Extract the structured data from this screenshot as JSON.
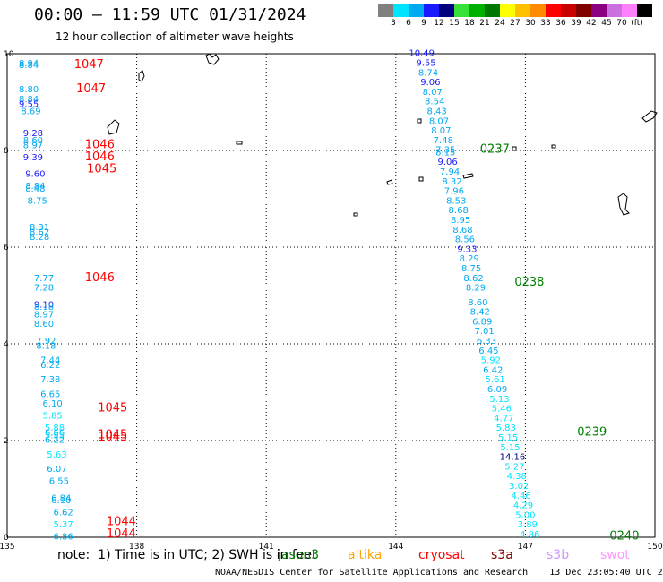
{
  "header": {
    "title": "00:00 – 11:59 UTC 01/31/2024",
    "subtitle": "12 hour collection of altimeter wave heights"
  },
  "colorbar": {
    "labels": [
      "3",
      "6",
      "9",
      "12",
      "15",
      "18",
      "21",
      "24",
      "27",
      "30",
      "33",
      "36",
      "39",
      "42",
      "45",
      "70",
      "(ft)"
    ],
    "colors": [
      "#808080",
      "#00e5ff",
      "#00aaf0",
      "#1a1aff",
      "#00007f",
      "#38e038",
      "#00b000",
      "#007800",
      "#ffff00",
      "#ffc000",
      "#ff8c00",
      "#ff0000",
      "#c80000",
      "#800000",
      "#8b0080",
      "#cc70e0",
      "#ff80ff",
      "#000000"
    ]
  },
  "footer": {
    "note": "note:  1) Time is in UTC; 2) SWH is in feet",
    "credit": "NOAA/NESDIS Center for Satellite Applications and Research    13 Dec 23:05:40 UTC 2024"
  },
  "legend": [
    {
      "label": "jason3",
      "color": "#007f00"
    },
    {
      "label": "altika",
      "color": "#ffa500"
    },
    {
      "label": "cryosat",
      "color": "#ff0000"
    },
    {
      "label": "s3a",
      "color": "#800000"
    },
    {
      "label": "s3b",
      "color": "#cc99ff"
    },
    {
      "label": "swot",
      "color": "#ff99ff"
    }
  ],
  "chart_data": {
    "type": "scatter",
    "title": "12 hour collection of altimeter wave heights",
    "xlim": [
      135,
      150
    ],
    "ylim": [
      0,
      10
    ],
    "x_ticks": [
      135,
      138,
      141,
      144,
      147,
      150
    ],
    "y_ticks": [
      0,
      2,
      4,
      6,
      8,
      10
    ],
    "grid": true,
    "series": [
      {
        "name": "cryosat",
        "color_key": "cryosat",
        "pass_labels": [
          {
            "x": 136.55,
            "y": 9.7,
            "text": "1047"
          },
          {
            "x": 136.6,
            "y": 9.2,
            "text": "1047"
          },
          {
            "x": 136.8,
            "y": 8.05,
            "text": "1046"
          },
          {
            "x": 136.8,
            "y": 7.8,
            "text": "1046"
          },
          {
            "x": 136.85,
            "y": 7.55,
            "text": "1045"
          },
          {
            "x": 136.8,
            "y": 5.3,
            "text": "1046"
          },
          {
            "x": 137.1,
            "y": 2.6,
            "text": "1045"
          },
          {
            "x": 137.1,
            "y": 2.05,
            "text": "1045"
          },
          {
            "x": 137.1,
            "y": 2.0,
            "text": "1045"
          },
          {
            "x": 137.3,
            "y": 0.25,
            "text": "1044"
          },
          {
            "x": 137.3,
            "y": 0.0,
            "text": "1044"
          }
        ],
        "points": [
          {
            "x": 135.5,
            "y": 9.74,
            "v": 8.94
          },
          {
            "x": 135.5,
            "y": 9.7,
            "v": 8.84
          },
          {
            "x": 135.5,
            "y": 9.2,
            "v": 8.8
          },
          {
            "x": 135.5,
            "y": 9.0,
            "v": 8.84
          },
          {
            "x": 135.5,
            "y": 8.9,
            "v": 9.55
          },
          {
            "x": 135.55,
            "y": 8.75,
            "v": 8.69
          },
          {
            "x": 135.6,
            "y": 8.3,
            "v": 9.28
          },
          {
            "x": 135.6,
            "y": 8.15,
            "v": 8.6
          },
          {
            "x": 135.6,
            "y": 8.05,
            "v": 8.97
          },
          {
            "x": 135.6,
            "y": 7.8,
            "v": 9.39
          },
          {
            "x": 135.65,
            "y": 7.45,
            "v": 9.6
          },
          {
            "x": 135.65,
            "y": 7.2,
            "v": 8.84
          },
          {
            "x": 135.65,
            "y": 7.15,
            "v": 8.48
          },
          {
            "x": 135.7,
            "y": 6.9,
            "v": 8.75
          },
          {
            "x": 135.75,
            "y": 6.35,
            "v": 8.31
          },
          {
            "x": 135.75,
            "y": 6.25,
            "v": 8.62
          },
          {
            "x": 135.75,
            "y": 6.15,
            "v": 8.28
          },
          {
            "x": 135.85,
            "y": 5.3,
            "v": 7.77
          },
          {
            "x": 135.85,
            "y": 5.1,
            "v": 7.28
          },
          {
            "x": 135.85,
            "y": 4.75,
            "v": 9.1
          },
          {
            "x": 135.85,
            "y": 4.7,
            "v": 8.18
          },
          {
            "x": 135.85,
            "y": 4.55,
            "v": 8.97
          },
          {
            "x": 135.85,
            "y": 4.35,
            "v": 8.6
          },
          {
            "x": 135.9,
            "y": 4.0,
            "v": 7.92
          },
          {
            "x": 135.9,
            "y": 3.9,
            "v": 8.18
          },
          {
            "x": 136.0,
            "y": 3.6,
            "v": 7.44
          },
          {
            "x": 136.0,
            "y": 3.5,
            "v": 6.22
          },
          {
            "x": 136.0,
            "y": 3.2,
            "v": 7.38
          },
          {
            "x": 136.0,
            "y": 2.9,
            "v": 6.65
          },
          {
            "x": 136.05,
            "y": 2.7,
            "v": 6.1
          },
          {
            "x": 136.05,
            "y": 2.45,
            "v": 5.85
          },
          {
            "x": 136.1,
            "y": 2.2,
            "v": 5.88
          },
          {
            "x": 136.1,
            "y": 2.1,
            "v": 6.66
          },
          {
            "x": 136.1,
            "y": 2.05,
            "v": 5.95
          },
          {
            "x": 136.1,
            "y": 1.95,
            "v": 6.22
          },
          {
            "x": 136.15,
            "y": 1.65,
            "v": 5.63
          },
          {
            "x": 136.15,
            "y": 1.35,
            "v": 6.07
          },
          {
            "x": 136.2,
            "y": 1.1,
            "v": 6.55
          },
          {
            "x": 136.25,
            "y": 0.75,
            "v": 6.84
          },
          {
            "x": 136.25,
            "y": 0.7,
            "v": 6.1
          },
          {
            "x": 136.3,
            "y": 0.45,
            "v": 6.62
          },
          {
            "x": 136.3,
            "y": 0.2,
            "v": 5.37
          },
          {
            "x": 136.3,
            "y": -0.05,
            "v": 6.86
          }
        ]
      },
      {
        "name": "jason3",
        "color_key": "jason3",
        "pass_labels": [
          {
            "x": 145.95,
            "y": 7.95,
            "text": "0237"
          },
          {
            "x": 146.75,
            "y": 5.2,
            "text": "0238"
          },
          {
            "x": 148.2,
            "y": 2.1,
            "text": "0239"
          },
          {
            "x": 148.95,
            "y": -0.05,
            "text": "0240"
          }
        ],
        "points": [
          {
            "x": 144.6,
            "y": 9.95,
            "v": 10.49
          },
          {
            "x": 144.7,
            "y": 9.75,
            "v": 9.55
          },
          {
            "x": 144.75,
            "y": 9.55,
            "v": 8.74
          },
          {
            "x": 144.8,
            "y": 9.35,
            "v": 9.06
          },
          {
            "x": 144.85,
            "y": 9.15,
            "v": 8.07
          },
          {
            "x": 144.9,
            "y": 8.95,
            "v": 8.54
          },
          {
            "x": 144.95,
            "y": 8.75,
            "v": 8.43
          },
          {
            "x": 145.0,
            "y": 8.55,
            "v": 8.07
          },
          {
            "x": 145.05,
            "y": 8.35,
            "v": 8.07
          },
          {
            "x": 145.1,
            "y": 8.15,
            "v": 7.48
          },
          {
            "x": 145.15,
            "y": 7.95,
            "v": 7.35
          },
          {
            "x": 145.15,
            "y": 7.9,
            "v": 8.15
          },
          {
            "x": 145.2,
            "y": 7.7,
            "v": 9.06
          },
          {
            "x": 145.25,
            "y": 7.5,
            "v": 7.94
          },
          {
            "x": 145.3,
            "y": 7.3,
            "v": 8.32
          },
          {
            "x": 145.35,
            "y": 7.1,
            "v": 7.96
          },
          {
            "x": 145.4,
            "y": 6.9,
            "v": 8.53
          },
          {
            "x": 145.45,
            "y": 6.7,
            "v": 8.68
          },
          {
            "x": 145.5,
            "y": 6.5,
            "v": 8.95
          },
          {
            "x": 145.55,
            "y": 6.3,
            "v": 8.68
          },
          {
            "x": 145.6,
            "y": 6.1,
            "v": 8.56
          },
          {
            "x": 145.65,
            "y": 5.9,
            "v": 9.33
          },
          {
            "x": 145.7,
            "y": 5.7,
            "v": 8.29
          },
          {
            "x": 145.75,
            "y": 5.5,
            "v": 8.75
          },
          {
            "x": 145.8,
            "y": 5.3,
            "v": 8.62
          },
          {
            "x": 145.85,
            "y": 5.1,
            "v": 8.29
          },
          {
            "x": 145.9,
            "y": 4.8,
            "v": 8.6
          },
          {
            "x": 145.95,
            "y": 4.6,
            "v": 8.42
          },
          {
            "x": 146.0,
            "y": 4.4,
            "v": 6.89
          },
          {
            "x": 146.05,
            "y": 4.2,
            "v": 7.01
          },
          {
            "x": 146.1,
            "y": 4.0,
            "v": 6.33
          },
          {
            "x": 146.15,
            "y": 3.8,
            "v": 6.45
          },
          {
            "x": 146.2,
            "y": 3.6,
            "v": 5.92
          },
          {
            "x": 146.25,
            "y": 3.4,
            "v": 6.42
          },
          {
            "x": 146.3,
            "y": 3.2,
            "v": 5.61
          },
          {
            "x": 146.35,
            "y": 3.0,
            "v": 6.09
          },
          {
            "x": 146.4,
            "y": 2.8,
            "v": 5.13
          },
          {
            "x": 146.45,
            "y": 2.6,
            "v": 5.46
          },
          {
            "x": 146.5,
            "y": 2.4,
            "v": 4.77
          },
          {
            "x": 146.55,
            "y": 2.2,
            "v": 5.83
          },
          {
            "x": 146.6,
            "y": 2.0,
            "v": 5.15
          },
          {
            "x": 146.65,
            "y": 1.8,
            "v": 5.15
          },
          {
            "x": 146.7,
            "y": 1.6,
            "v": 14.16
          },
          {
            "x": 146.75,
            "y": 1.4,
            "v": 5.27
          },
          {
            "x": 146.8,
            "y": 1.2,
            "v": 4.38
          },
          {
            "x": 146.85,
            "y": 1.0,
            "v": 3.02
          },
          {
            "x": 146.9,
            "y": 0.8,
            "v": 4.46
          },
          {
            "x": 146.95,
            "y": 0.6,
            "v": 4.29
          },
          {
            "x": 147.0,
            "y": 0.4,
            "v": 5.0
          },
          {
            "x": 147.05,
            "y": 0.2,
            "v": 3.89
          },
          {
            "x": 147.1,
            "y": 0.0,
            "v": 4.86
          }
        ]
      }
    ]
  }
}
